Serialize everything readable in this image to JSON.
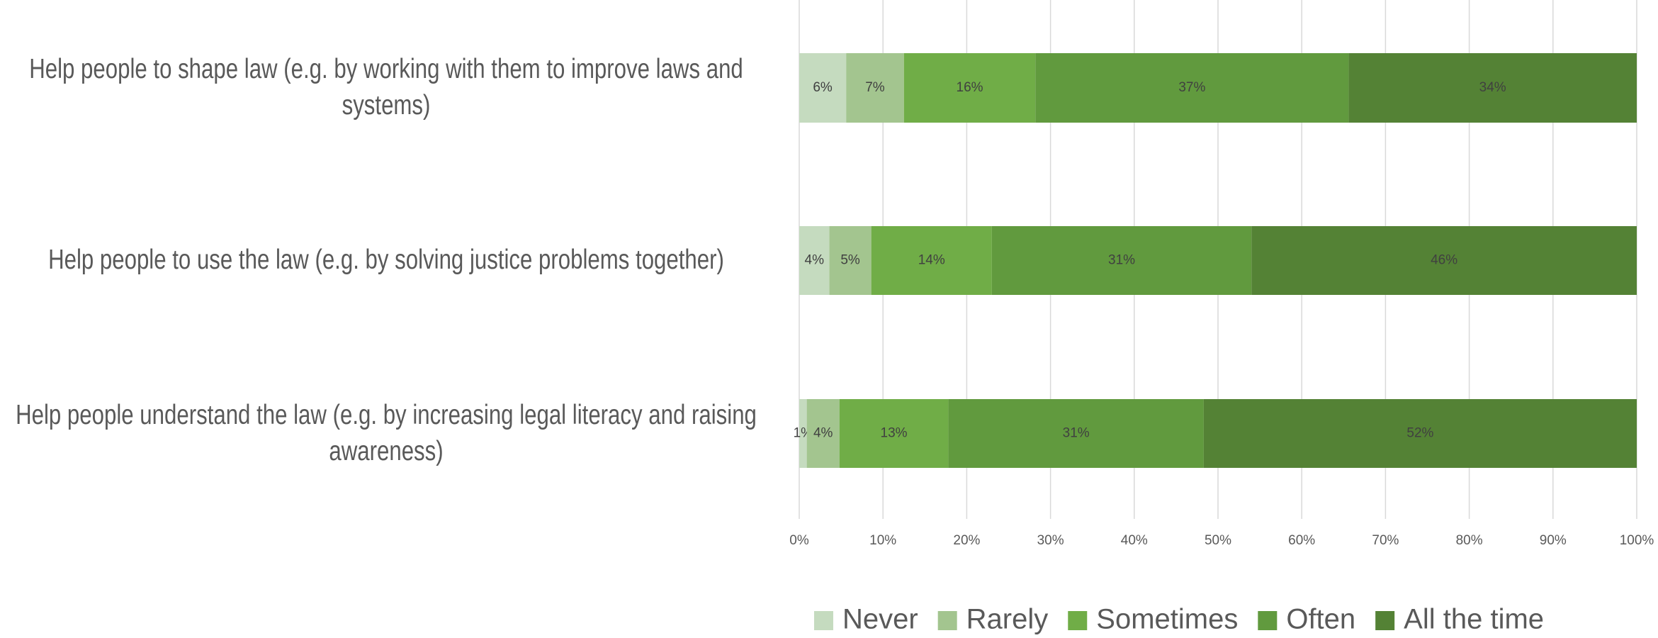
{
  "chart_data": {
    "type": "stacked-bar-horizontal",
    "categories": [
      "Help people to shape law (e.g. by working with them to improve laws and systems)",
      "Help people to use the law (e.g. by solving justice problems together)",
      "Help people understand the law (e.g. by increasing legal literacy and raising awareness)"
    ],
    "series": [
      {
        "name": "Never",
        "color": "#c5dbbf",
        "values": [
          5.6,
          3.6,
          0.9
        ],
        "value_labels": [
          "6%",
          "4%",
          "1%"
        ]
      },
      {
        "name": "Rarely",
        "color": "#a3c58f",
        "values": [
          6.9,
          5.0,
          3.9
        ],
        "value_labels": [
          "7%",
          "5%",
          "4%"
        ]
      },
      {
        "name": "Sometimes",
        "color": "#70ad47",
        "values": [
          15.7,
          14.4,
          13.0
        ],
        "value_labels": [
          "16%",
          "14%",
          "13%"
        ]
      },
      {
        "name": "Often",
        "color": "#619a3e",
        "values": [
          37.4,
          31.0,
          30.5
        ],
        "value_labels": [
          "37%",
          "31%",
          "31%"
        ]
      },
      {
        "name": "All the time",
        "color": "#548235",
        "values": [
          34.4,
          46.0,
          51.7
        ],
        "value_labels": [
          "34%",
          "46%",
          "52%"
        ]
      }
    ],
    "xlim": [
      0,
      100
    ],
    "xticks": [
      {
        "value": 0,
        "label": "0%"
      },
      {
        "value": 10,
        "label": "10%"
      },
      {
        "value": 20,
        "label": "20%"
      },
      {
        "value": 30,
        "label": "30%"
      },
      {
        "value": 40,
        "label": "40%"
      },
      {
        "value": 50,
        "label": "50%"
      },
      {
        "value": 60,
        "label": "60%"
      },
      {
        "value": 70,
        "label": "70%"
      },
      {
        "value": 80,
        "label": "80%"
      },
      {
        "value": 90,
        "label": "90%"
      },
      {
        "value": 100,
        "label": "100%"
      }
    ],
    "grid": true,
    "legend": "bottom"
  }
}
